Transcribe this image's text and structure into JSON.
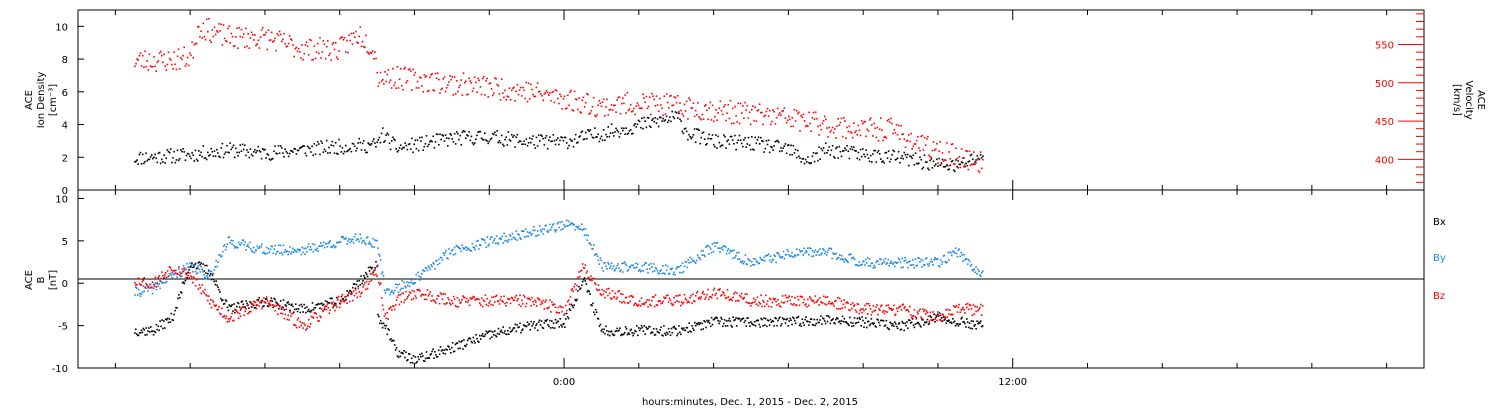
{
  "chart_data": [
    {
      "type": "scatter",
      "xlabel": "hours:minutes, Dec.  1, 2015 - Dec.  2, 2015",
      "xlim": [
        -13.0,
        23.0
      ],
      "x_ticks": [
        0,
        12
      ],
      "x_tick_labels": [
        "0:00",
        "12:00"
      ],
      "y_left": {
        "label_lines": [
          "ACE",
          "Ion Density",
          "[cm⁻³]"
        ],
        "ylim": [
          0,
          11
        ],
        "ticks": [
          0,
          2,
          4,
          6,
          8,
          10
        ],
        "color": "#000000"
      },
      "y_right": {
        "label_lines": [
          "ACE",
          "Velocity",
          "[km/s]"
        ],
        "ylim": [
          360,
          595
        ],
        "ticks": [
          400,
          450,
          500,
          550
        ],
        "color": "#ff0000"
      },
      "series": [
        {
          "axis": "left",
          "color": "#000000",
          "x": [
            -11.5,
            -10,
            -9,
            -8,
            -7,
            -6,
            -5,
            -4.9,
            -4.5,
            -4,
            -3,
            -2,
            -1,
            0,
            1,
            2,
            3,
            3.3,
            4,
            5,
            6,
            6.5,
            7,
            8,
            9,
            10,
            10.5,
            11.2
          ],
          "y": [
            2.0,
            2.2,
            2.5,
            2.3,
            2.5,
            2.7,
            2.8,
            3.5,
            2.6,
            2.8,
            3.2,
            3.3,
            3.0,
            3.0,
            3.5,
            4.0,
            4.5,
            3.5,
            3.0,
            2.9,
            2.5,
            1.8,
            2.5,
            2.2,
            2.0,
            1.6,
            1.5,
            2.2
          ]
        },
        {
          "axis": "right",
          "color": "#ff0000",
          "x": [
            -11.5,
            -10.5,
            -10,
            -9.8,
            -9,
            -8,
            -7,
            -6,
            -5.5,
            -5.1,
            -5,
            -4,
            -3,
            -2,
            -1,
            0,
            1,
            2,
            3,
            4,
            5,
            6,
            7,
            8,
            8.8,
            9.5,
            10,
            10.5,
            11.2
          ],
          "y": [
            530,
            530,
            535,
            575,
            560,
            560,
            545,
            545,
            565,
            545,
            510,
            505,
            500,
            495,
            490,
            480,
            470,
            475,
            470,
            465,
            460,
            455,
            445,
            440,
            440,
            420,
            410,
            405,
            395
          ]
        }
      ]
    },
    {
      "type": "scatter",
      "xlim": [
        -13.0,
        23.0
      ],
      "x_ticks": [
        0,
        12
      ],
      "x_tick_labels": [
        "0:00",
        "12:00"
      ],
      "y_left": {
        "label_lines": [
          "ACE",
          "B",
          "[nT]"
        ],
        "ylim": [
          -10,
          11
        ],
        "ticks": [
          -10,
          -5,
          0,
          5,
          10
        ]
      },
      "legend": [
        "Bx",
        "By",
        "Bz"
      ],
      "legend_position": "right",
      "zero_line": true,
      "series": [
        {
          "name": "Bx",
          "color": "#000000",
          "x": [
            -11.5,
            -11,
            -10.5,
            -10,
            -9.5,
            -9,
            -8,
            -7,
            -6,
            -5,
            -5.5,
            -4.8,
            -4.5,
            -4,
            -3,
            -2,
            -1,
            0,
            0.5,
            1,
            2,
            3,
            4,
            5,
            6,
            7,
            8,
            9,
            10,
            11.2
          ],
          "y": [
            -5.5,
            -5.5,
            -4,
            2.5,
            1.5,
            -3,
            -2,
            -3,
            -2,
            2.5,
            -1,
            -5,
            -8,
            -9.0,
            -7.5,
            -6,
            -5,
            -4.5,
            0.5,
            -5.5,
            -5.5,
            -5.5,
            -4.5,
            -4.5,
            -4.5,
            -4.2,
            -4.5,
            -5.0,
            -4.0,
            -5.0
          ]
        },
        {
          "name": "By",
          "color": "#1e88e5",
          "x": [
            -11.5,
            -11,
            -10.5,
            -10,
            -9.5,
            -9,
            -8,
            -7,
            -6,
            -5.5,
            -5,
            -4.8,
            -4.5,
            -4,
            -3,
            -2,
            -1,
            0,
            0.5,
            1,
            2,
            3,
            4,
            5,
            6,
            7,
            8,
            9,
            10,
            10.5,
            11.2
          ],
          "y": [
            -1,
            -0.5,
            1,
            2,
            1,
            5,
            4,
            4,
            5,
            5.5,
            4.5,
            -1,
            -0.5,
            0.5,
            4,
            5,
            6,
            7,
            6.5,
            2,
            2,
            1.5,
            4.5,
            2.5,
            3.5,
            3.8,
            2.5,
            2.5,
            2.5,
            3.8,
            1.0
          ]
        },
        {
          "name": "Bz",
          "color": "#ff0000",
          "x": [
            -11.5,
            -11,
            -10.5,
            -10,
            -9.5,
            -9,
            -8,
            -7,
            -6,
            -5.5,
            -5,
            -4.8,
            -4.5,
            -4,
            -3,
            -2,
            -1,
            0,
            0.5,
            1,
            2,
            3,
            4,
            5,
            6,
            7,
            8,
            9,
            10,
            10.5,
            11.2
          ],
          "y": [
            0.5,
            0,
            2,
            1,
            -2,
            -4,
            -2,
            -5,
            -2,
            -1,
            1.5,
            -4,
            -2,
            -1,
            -2,
            -2,
            -2,
            -3,
            2,
            -1,
            -2,
            -2,
            -1,
            -2,
            -2,
            -2,
            -3,
            -3,
            -4,
            -3,
            -3
          ]
        }
      ]
    }
  ]
}
